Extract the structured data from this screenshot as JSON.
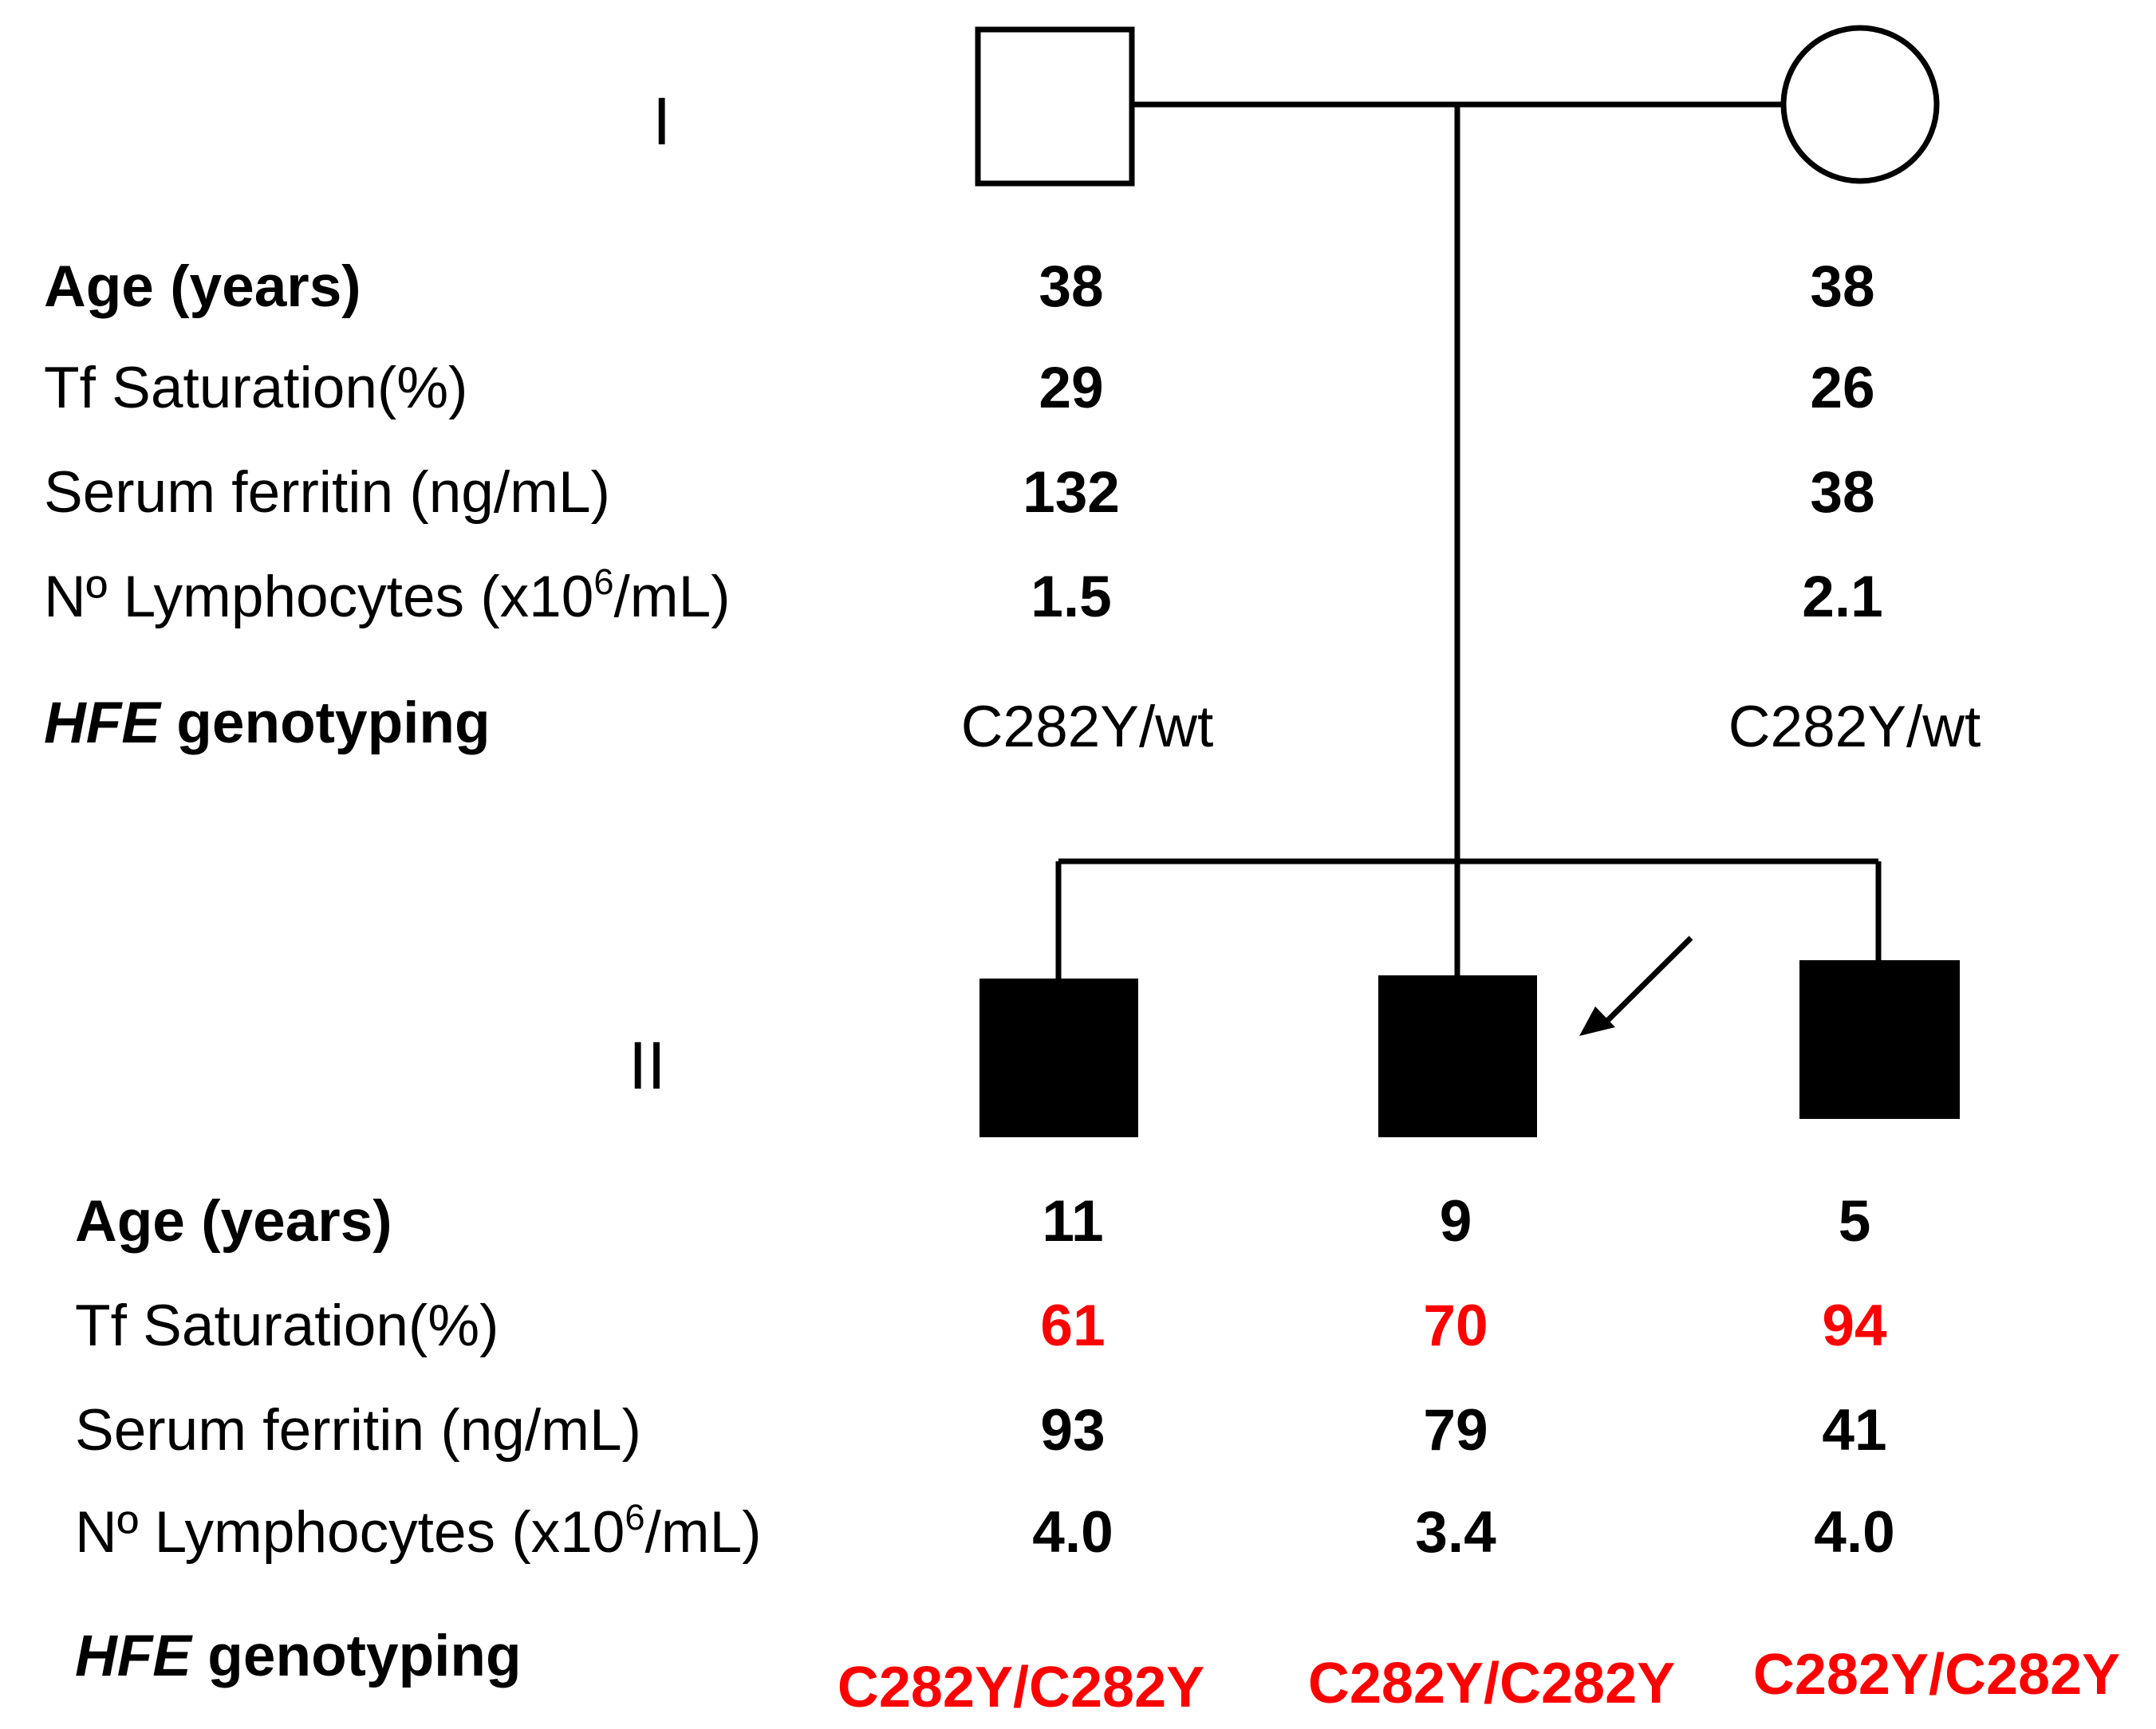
{
  "generations": {
    "gen1": "I",
    "gen2": "II"
  },
  "row_labels": {
    "age": "Age (years)",
    "tf_saturation": "Tf Saturation(%)",
    "serum_ferritin": "Serum ferritin (ng/mL)",
    "lymphocytes_prefix": "Nº Lymphocytes (x10",
    "lymphocytes_sup": "6",
    "lymphocytes_suffix": "/mL)",
    "genotyping_gene": "HFE",
    "genotyping_suffix": " genotyping"
  },
  "generation_1": {
    "father": {
      "age": "38",
      "tf_saturation": "29",
      "serum_ferritin": "132",
      "lymphocytes": "1.5",
      "hfe_genotype": "C282Y/wt"
    },
    "mother": {
      "age": "38",
      "tf_saturation": "26",
      "serum_ferritin": "38",
      "lymphocytes": "2.1",
      "hfe_genotype": "C282Y/wt"
    }
  },
  "generation_2": {
    "son_1": {
      "age": "11",
      "tf_saturation": "61",
      "serum_ferritin": "93",
      "lymphocytes": "4.0",
      "hfe_genotype": "C282Y/C282Y"
    },
    "son_2_proband": {
      "age": "9",
      "tf_saturation": "70",
      "serum_ferritin": "79",
      "lymphocytes": "3.4",
      "hfe_genotype": "C282Y/C282Y"
    },
    "son_3": {
      "age": "5",
      "tf_saturation": "94",
      "serum_ferritin": "41",
      "lymphocytes": "4.0",
      "hfe_genotype": "C282Y/C282Y"
    }
  },
  "colors": {
    "highlight": "#ff0000",
    "affected_fill": "#000000",
    "unaffected_fill": "#ffffff"
  },
  "symbols": {
    "male_unaffected": "square-outline",
    "female_unaffected": "circle-outline",
    "male_affected": "square-filled",
    "proband_marker": "arrow-icon"
  }
}
